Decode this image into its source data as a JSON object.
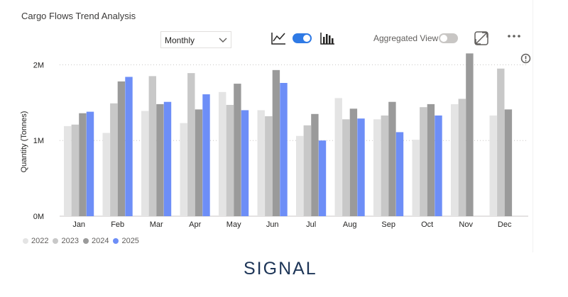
{
  "visual": {
    "title": "Cargo Flows Trend Analysis",
    "period_select": {
      "value": "Monthly"
    },
    "line_toggle_on": true,
    "aggregated_view": {
      "label": "Aggregated View",
      "on": false
    }
  },
  "icons": {
    "line_chart": "line-chart-icon",
    "bar_chart": "bar-chart-icon",
    "chevron": "chevron-down-icon",
    "expand": "expand-icon",
    "more": "more-options-icon",
    "info": "info-icon"
  },
  "colors": {
    "2022": "#e4e4e4",
    "2023": "#c8c8c8",
    "2024": "#9a9a9a",
    "2025": "#6d8ef7",
    "toggle_on": "#2f7ae5",
    "toggle_off": "#c8c6c4",
    "brand": "#1d3557"
  },
  "brand": {
    "name": "SIGNAL"
  },
  "chart_data": {
    "type": "bar",
    "ylabel": "Quantity (Tonnes)",
    "ylim": [
      0,
      2000000
    ],
    "yticks": [
      {
        "value": 0,
        "label": "0M"
      },
      {
        "value": 1000000,
        "label": "1M"
      },
      {
        "value": 2000000,
        "label": "2M"
      }
    ],
    "grid": true,
    "legend": "bottom-left",
    "categories": [
      "Jan",
      "Feb",
      "Mar",
      "Apr",
      "May",
      "Jun",
      "Jul",
      "Aug",
      "Sep",
      "Oct",
      "Nov",
      "Dec"
    ],
    "series": [
      {
        "name": "2022",
        "values": [
          1190000,
          1100000,
          1390000,
          1230000,
          1640000,
          1400000,
          1060000,
          1560000,
          1280000,
          1010000,
          1480000,
          1330000
        ]
      },
      {
        "name": "2023",
        "values": [
          1210000,
          1490000,
          1850000,
          1890000,
          1470000,
          1320000,
          1200000,
          1280000,
          1330000,
          1440000,
          1550000,
          1950000
        ]
      },
      {
        "name": "2024",
        "values": [
          1360000,
          1780000,
          1480000,
          1410000,
          1750000,
          1930000,
          1350000,
          1420000,
          1510000,
          1480000,
          2150000,
          1410000
        ]
      },
      {
        "name": "2025",
        "values": [
          1380000,
          1840000,
          1510000,
          1610000,
          1400000,
          1760000,
          1000000,
          1290000,
          1110000,
          1330000,
          null,
          null
        ]
      }
    ]
  }
}
